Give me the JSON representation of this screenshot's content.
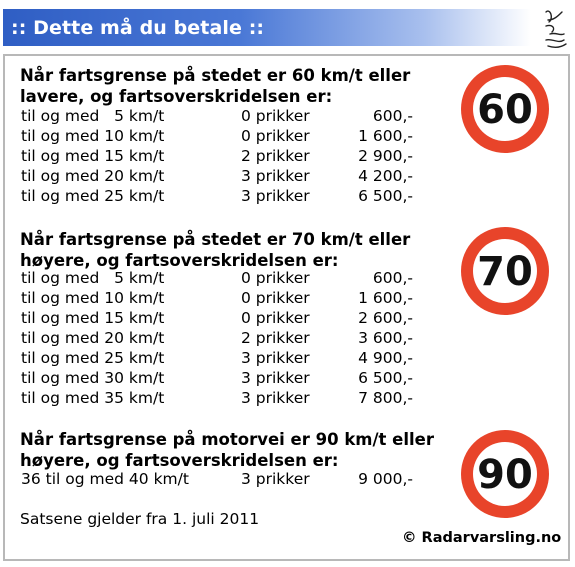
{
  "banner": {
    "title": ":: Dette må du betale ::"
  },
  "sections": [
    {
      "heading_line1": "Når fartsgrense på stedet er 60 km/t eller",
      "heading_line2": "lavere, og fartsoverskridelsen er:",
      "sign_label": "60",
      "rows": [
        {
          "range": "til og med   5 km/t",
          "points": "0 prikker",
          "amount": "600,-"
        },
        {
          "range": "til og med 10 km/t",
          "points": "0 prikker",
          "amount": "1 600,-"
        },
        {
          "range": "til og med 15 km/t",
          "points": "2 prikker",
          "amount": "2 900,-"
        },
        {
          "range": "til og med 20 km/t",
          "points": "3 prikker",
          "amount": "4 200,-"
        },
        {
          "range": "til og med 25 km/t",
          "points": "3 prikker",
          "amount": "6 500,-"
        }
      ]
    },
    {
      "heading_line1": "Når fartsgrense på stedet er 70 km/t eller",
      "heading_line2": "høyere, og fartsoverskridelsen er:",
      "sign_label": "70",
      "rows": [
        {
          "range": "til og med   5 km/t",
          "points": "0 prikker",
          "amount": "600,-"
        },
        {
          "range": "til og med 10 km/t",
          "points": "0 prikker",
          "amount": "1 600,-"
        },
        {
          "range": "til og med 15 km/t",
          "points": "0 prikker",
          "amount": "2 600,-"
        },
        {
          "range": "til og med 20 km/t",
          "points": "2 prikker",
          "amount": "3 600,-"
        },
        {
          "range": "til og med 25 km/t",
          "points": "3 prikker",
          "amount": "4 900,-"
        },
        {
          "range": "til og med 30 km/t",
          "points": "3 prikker",
          "amount": "6 500,-"
        },
        {
          "range": "til og med 35 km/t",
          "points": "3 prikker",
          "amount": "7 800,-"
        }
      ]
    },
    {
      "heading_line1": "Når fartsgrense på motorvei er 90 km/t eller",
      "heading_line2": "høyere, og fartsoverskridelsen er:",
      "sign_label": "90",
      "rows": [
        {
          "range": "36 til og med 40 km/t",
          "points": "3 prikker",
          "amount": "9 000,-"
        }
      ]
    }
  ],
  "footer": {
    "validity": "Satsene gjelder fra 1. juli 2011",
    "copyright": "© Radarvarsling.no"
  },
  "colors": {
    "banner_blue": "#2f5ec4",
    "sign_ring": "#e8442a",
    "sign_text": "#111111"
  }
}
